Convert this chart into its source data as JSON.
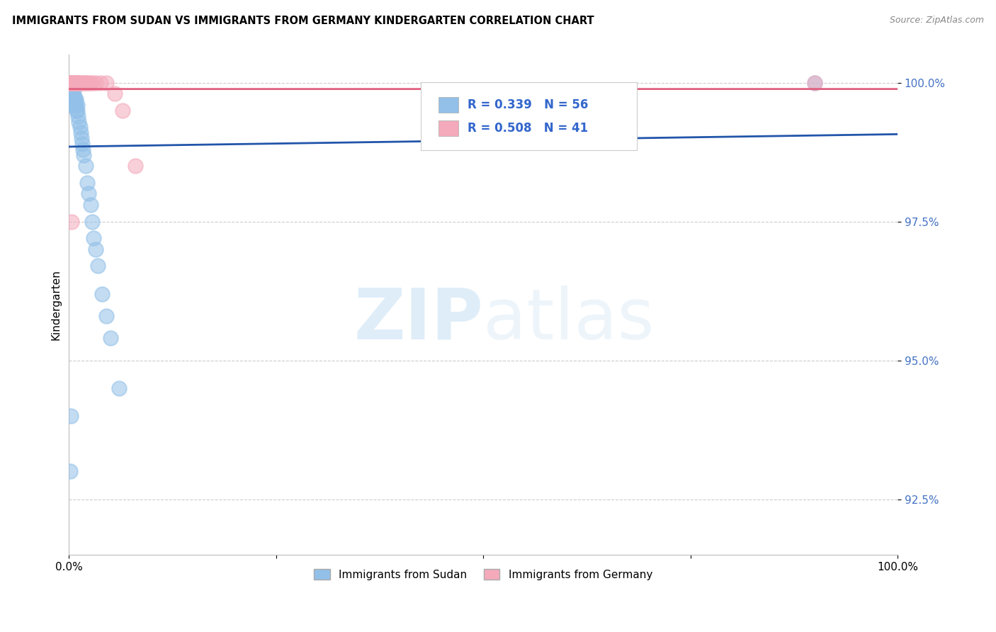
{
  "title": "IMMIGRANTS FROM SUDAN VS IMMIGRANTS FROM GERMANY KINDERGARTEN CORRELATION CHART",
  "source": "Source: ZipAtlas.com",
  "ylabel": "Kindergarten",
  "xlim": [
    0.0,
    1.0
  ],
  "ylim": [
    0.915,
    1.005
  ],
  "yticks": [
    0.925,
    0.95,
    0.975,
    1.0
  ],
  "ytick_labels": [
    "92.5%",
    "95.0%",
    "97.5%",
    "100.0%"
  ],
  "legend_labels": [
    "Immigrants from Sudan",
    "Immigrants from Germany"
  ],
  "legend_R": [
    "R = 0.339",
    "R = 0.508"
  ],
  "legend_N": [
    "N = 56",
    "N = 41"
  ],
  "blue_color": "#92C0E8",
  "pink_color": "#F4AABB",
  "blue_line_color": "#2255AA",
  "pink_line_color": "#E06080",
  "sudan_x": [
    0.0005,
    0.0005,
    0.0005,
    0.001,
    0.001,
    0.001,
    0.001,
    0.001,
    0.0015,
    0.002,
    0.002,
    0.002,
    0.002,
    0.0025,
    0.003,
    0.003,
    0.003,
    0.003,
    0.004,
    0.004,
    0.004,
    0.005,
    0.005,
    0.005,
    0.006,
    0.006,
    0.007,
    0.007,
    0.008,
    0.008,
    0.009,
    0.01,
    0.01,
    0.011,
    0.012,
    0.013,
    0.014,
    0.015,
    0.016,
    0.017,
    0.018,
    0.02,
    0.022,
    0.024,
    0.026,
    0.028,
    0.03,
    0.032,
    0.035,
    0.04,
    0.045,
    0.05,
    0.06,
    0.9,
    0.001,
    0.002
  ],
  "sudan_y": [
    1.0,
    1.0,
    1.0,
    1.0,
    1.0,
    1.0,
    0.999,
    0.999,
    0.999,
    1.0,
    0.999,
    0.998,
    0.998,
    0.999,
    0.999,
    0.998,
    0.997,
    0.996,
    0.999,
    0.998,
    0.997,
    0.999,
    0.998,
    0.997,
    0.998,
    0.997,
    0.997,
    0.996,
    0.997,
    0.996,
    0.995,
    0.996,
    0.995,
    0.994,
    0.993,
    0.992,
    0.991,
    0.99,
    0.989,
    0.988,
    0.987,
    0.985,
    0.982,
    0.98,
    0.978,
    0.975,
    0.972,
    0.97,
    0.967,
    0.962,
    0.958,
    0.954,
    0.945,
    1.0,
    0.93,
    0.94
  ],
  "germany_x": [
    0.001,
    0.001,
    0.001,
    0.001,
    0.001,
    0.002,
    0.002,
    0.002,
    0.003,
    0.003,
    0.003,
    0.004,
    0.004,
    0.005,
    0.005,
    0.006,
    0.006,
    0.007,
    0.007,
    0.008,
    0.008,
    0.009,
    0.01,
    0.01,
    0.011,
    0.012,
    0.014,
    0.016,
    0.018,
    0.02,
    0.022,
    0.025,
    0.028,
    0.032,
    0.038,
    0.045,
    0.055,
    0.065,
    0.08,
    0.9,
    0.003
  ],
  "germany_y": [
    1.0,
    1.0,
    1.0,
    1.0,
    1.0,
    1.0,
    1.0,
    1.0,
    1.0,
    1.0,
    1.0,
    1.0,
    1.0,
    1.0,
    1.0,
    1.0,
    1.0,
    1.0,
    1.0,
    1.0,
    1.0,
    1.0,
    1.0,
    1.0,
    1.0,
    1.0,
    1.0,
    1.0,
    1.0,
    1.0,
    1.0,
    1.0,
    1.0,
    1.0,
    1.0,
    1.0,
    0.998,
    0.995,
    0.985,
    1.0,
    0.975
  ]
}
